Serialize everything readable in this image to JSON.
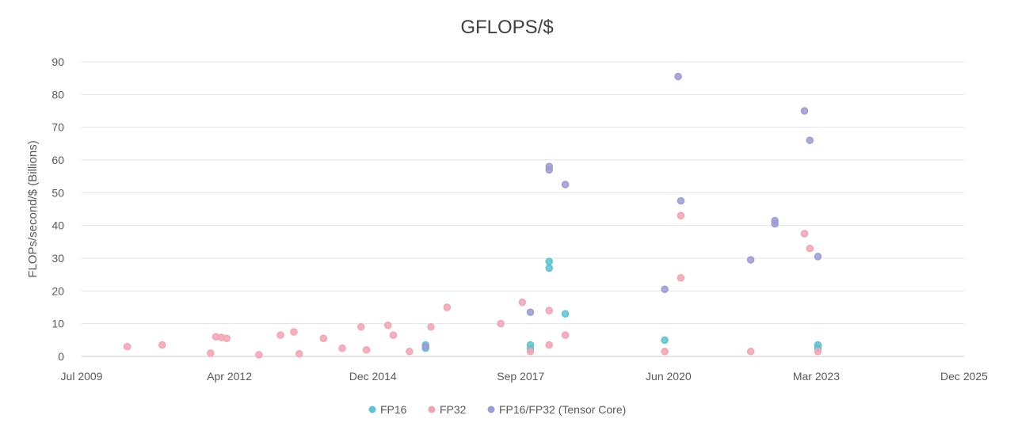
{
  "chart_data": {
    "type": "scatter",
    "title": "GFLOPS/$",
    "xlabel": "",
    "ylabel": "FLOPs/second/$ (Billions)",
    "xlim": [
      2009.5,
      2025.92
    ],
    "ylim": [
      0,
      90
    ],
    "y_ticks": [
      0,
      10,
      20,
      30,
      40,
      50,
      60,
      70,
      80,
      90
    ],
    "x_ticks": [
      {
        "label": "Jul 2009",
        "value": 2009.5
      },
      {
        "label": "Apr 2012",
        "value": 2012.25
      },
      {
        "label": "Dec 2014",
        "value": 2014.92
      },
      {
        "label": "Sep 2017",
        "value": 2017.67
      },
      {
        "label": "Jun 2020",
        "value": 2020.42
      },
      {
        "label": "Mar 2023",
        "value": 2023.17
      },
      {
        "label": "Dec 2025",
        "value": 2025.92
      }
    ],
    "grid": true,
    "legend_position": "bottom",
    "series": [
      {
        "name": "FP16",
        "color": "#5bc3d3",
        "points": [
          [
            2015.9,
            3.5
          ],
          [
            2015.9,
            2.5
          ],
          [
            2017.85,
            3.5
          ],
          [
            2017.85,
            2.3
          ],
          [
            2018.2,
            29.0
          ],
          [
            2018.2,
            27.0
          ],
          [
            2018.5,
            13.0
          ],
          [
            2020.35,
            5.0
          ],
          [
            2023.2,
            3.5
          ],
          [
            2023.2,
            2.5
          ]
        ]
      },
      {
        "name": "FP32",
        "color": "#f4a3b1",
        "points": [
          [
            2010.35,
            3.0
          ],
          [
            2011.0,
            3.5
          ],
          [
            2011.9,
            1.0
          ],
          [
            2012.0,
            6.0
          ],
          [
            2012.1,
            5.8
          ],
          [
            2012.2,
            5.5
          ],
          [
            2012.8,
            0.5
          ],
          [
            2013.2,
            6.5
          ],
          [
            2013.45,
            7.5
          ],
          [
            2013.55,
            0.8
          ],
          [
            2014.0,
            5.5
          ],
          [
            2014.35,
            2.5
          ],
          [
            2014.7,
            9.0
          ],
          [
            2014.8,
            2.0
          ],
          [
            2015.2,
            9.5
          ],
          [
            2015.3,
            6.5
          ],
          [
            2015.6,
            1.5
          ],
          [
            2016.0,
            9.0
          ],
          [
            2016.3,
            15.0
          ],
          [
            2017.3,
            10.0
          ],
          [
            2017.7,
            16.5
          ],
          [
            2017.85,
            1.5
          ],
          [
            2018.2,
            3.5
          ],
          [
            2018.2,
            14.0
          ],
          [
            2018.5,
            6.5
          ],
          [
            2020.35,
            1.5
          ],
          [
            2020.65,
            43.0
          ],
          [
            2020.65,
            24.0
          ],
          [
            2021.95,
            1.5
          ],
          [
            2022.95,
            37.5
          ],
          [
            2023.05,
            33.0
          ],
          [
            2023.2,
            1.5
          ]
        ]
      },
      {
        "name": "FP16/FP32 (Tensor Core)",
        "color": "#9b9bd6",
        "points": [
          [
            2015.9,
            3.0
          ],
          [
            2017.85,
            13.5
          ],
          [
            2018.2,
            58.0
          ],
          [
            2018.2,
            57.0
          ],
          [
            2018.5,
            52.5
          ],
          [
            2020.35,
            20.5
          ],
          [
            2020.6,
            85.5
          ],
          [
            2020.65,
            47.5
          ],
          [
            2021.95,
            29.5
          ],
          [
            2022.4,
            41.5
          ],
          [
            2022.4,
            40.5
          ],
          [
            2022.95,
            75.0
          ],
          [
            2023.05,
            66.0
          ],
          [
            2023.2,
            30.5
          ]
        ]
      }
    ]
  }
}
